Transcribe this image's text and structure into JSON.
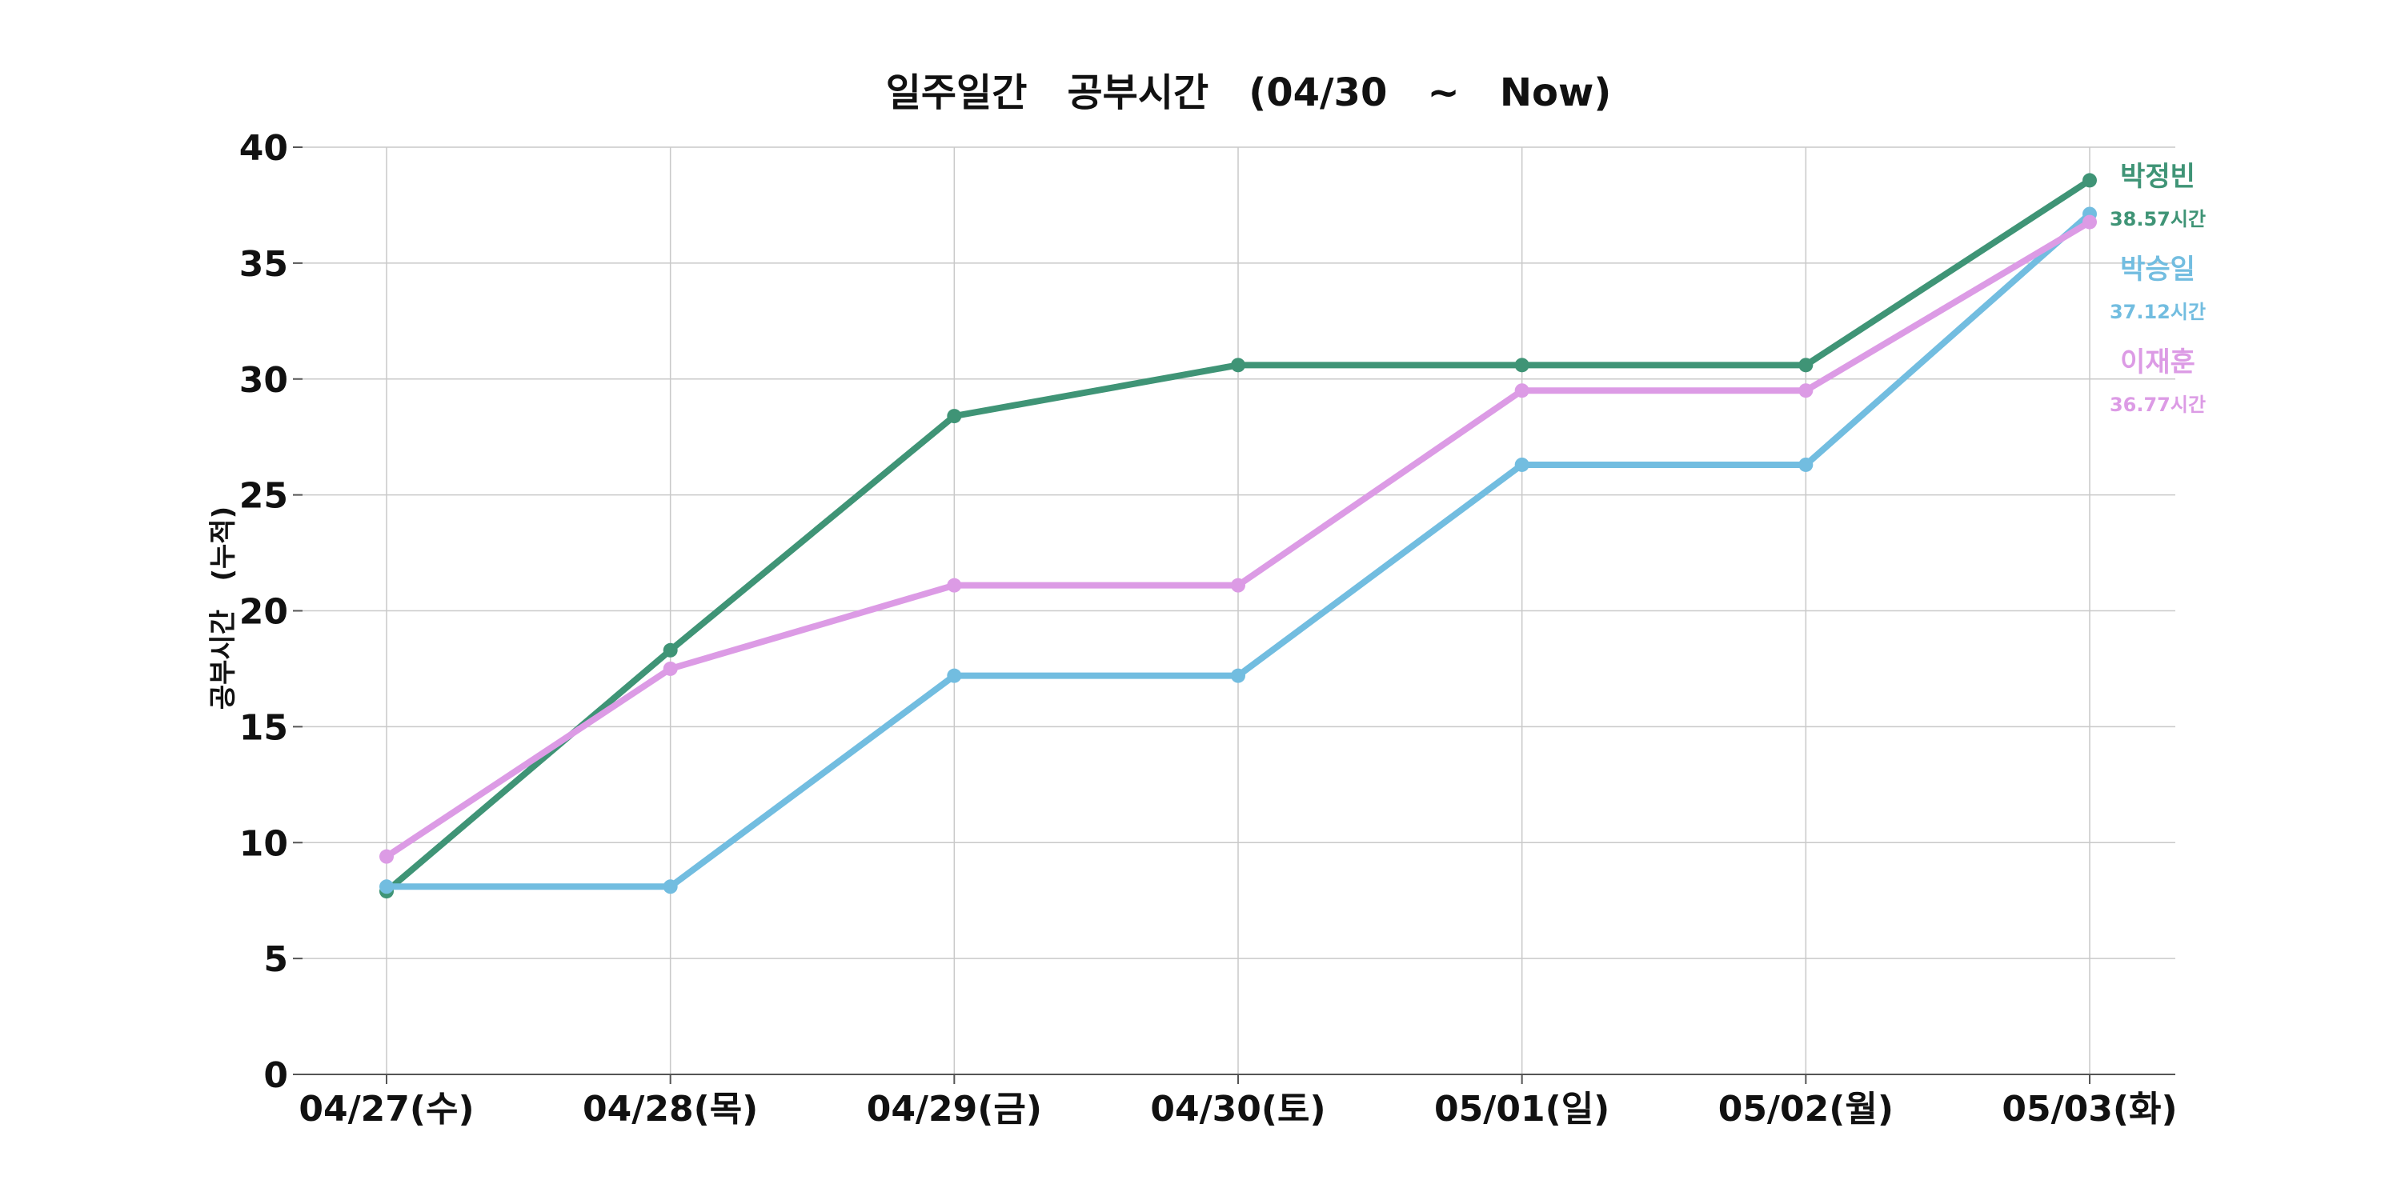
{
  "chart_data": {
    "type": "line",
    "title": "일주일간   공부시간   (04/30   ~   Now)",
    "xlabel": "",
    "ylabel": "공부시간   (누적)",
    "categories": [
      "04/27(수)",
      "04/28(목)",
      "04/29(금)",
      "04/30(토)",
      "05/01(일)",
      "05/02(월)",
      "05/03(화)"
    ],
    "ylim": [
      0,
      40
    ],
    "yticks": [
      0,
      5,
      10,
      15,
      20,
      25,
      30,
      35,
      40
    ],
    "grid": true,
    "legend_placement": "right",
    "series": [
      {
        "name": "박정빈",
        "total_label": "38.57시간",
        "color": "#3f9476",
        "values": [
          7.9,
          18.3,
          28.4,
          30.6,
          30.6,
          30.6,
          38.57
        ]
      },
      {
        "name": "박승일",
        "total_label": "37.12시간",
        "color": "#72bde0",
        "values": [
          8.1,
          8.1,
          17.2,
          17.2,
          26.3,
          26.3,
          37.12
        ]
      },
      {
        "name": "이재훈",
        "total_label": "36.77시간",
        "color": "#dc9be5",
        "values": [
          9.4,
          17.5,
          21.1,
          21.1,
          29.5,
          29.5,
          36.77
        ]
      }
    ]
  }
}
